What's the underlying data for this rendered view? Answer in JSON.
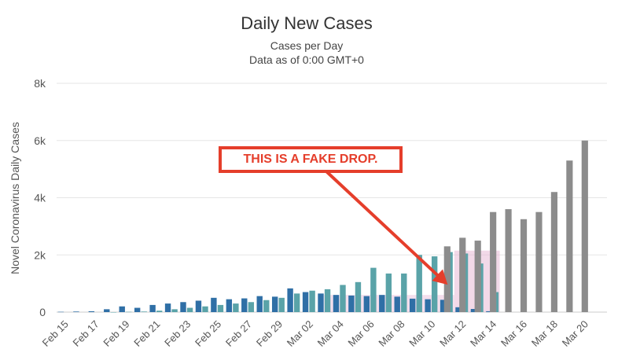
{
  "chart_data": {
    "type": "bar",
    "title": "Daily New Cases",
    "subtitle": "Cases per Day",
    "subtitle2": "Data as of 0:00 GMT+0",
    "ylabel": "Novel Coronavirus Daily Cases",
    "ylim": [
      0,
      8000
    ],
    "yticks": [
      "0",
      "2k",
      "4k",
      "6k",
      "8k"
    ],
    "ytick_values": [
      0,
      2000,
      4000,
      6000,
      8000
    ],
    "x_tick_labels": [
      "Feb 15",
      "Feb 17",
      "Feb 19",
      "Feb 21",
      "Feb 23",
      "Feb 25",
      "Feb 27",
      "Feb 29",
      "Mar 02",
      "Mar 04",
      "Mar 06",
      "Mar 08",
      "Mar 10",
      "Mar 12",
      "Mar 14",
      "Mar 16",
      "Mar 18",
      "Mar 20"
    ],
    "grid": true,
    "series_colors": {
      "blue": "#2f6fa6",
      "teal": "#5aa3a8",
      "gray": "#8c8c8c"
    },
    "series": [
      {
        "x": [
          "Feb 15",
          "Feb 16",
          "Feb 17",
          "Feb 18",
          "Feb 19",
          "Feb 20",
          "Feb 21",
          "Feb 22",
          "Feb 23",
          "Feb 24",
          "Feb 25",
          "Feb 26",
          "Feb 27",
          "Feb 28",
          "Feb 29",
          "Mar 01",
          "Mar 02",
          "Mar 03",
          "Mar 04",
          "Mar 05",
          "Mar 06",
          "Mar 07",
          "Mar 08",
          "Mar 09",
          "Mar 10",
          "Mar 11",
          "Mar 12",
          "Mar 13",
          "Mar 14"
        ],
        "values": [
          10,
          20,
          30,
          100,
          200,
          150,
          250,
          300,
          350,
          400,
          500,
          450,
          480,
          560,
          540,
          830,
          700,
          650,
          600,
          580,
          560,
          600,
          540,
          470,
          450,
          430,
          170,
          110,
          30
        ],
        "color": "#2f6fa6"
      },
      {
        "x": [
          "Feb 18",
          "Feb 19",
          "Feb 20",
          "Feb 21",
          "Feb 22",
          "Feb 23",
          "Feb 24",
          "Feb 25",
          "Feb 26",
          "Feb 27",
          "Feb 28",
          "Feb 29",
          "Mar 01",
          "Mar 02",
          "Mar 03",
          "Mar 04",
          "Mar 05",
          "Mar 06",
          "Mar 07",
          "Mar 08",
          "Mar 09",
          "Mar 10",
          "Mar 11",
          "Mar 12",
          "Mar 13",
          "Mar 14"
        ],
        "values": [
          0,
          10,
          20,
          50,
          100,
          150,
          200,
          250,
          300,
          350,
          420,
          500,
          650,
          750,
          800,
          950,
          1050,
          1550,
          1350,
          1350,
          2000,
          1950,
          2100,
          2050,
          1700,
          700
        ],
        "color": "#5aa3a8"
      },
      {
        "x": [
          "Mar 11",
          "Mar 12",
          "Mar 13",
          "Mar 14",
          "Mar 15",
          "Mar 16",
          "Mar 17",
          "Mar 18",
          "Mar 19",
          "Mar 20"
        ],
        "values": [
          2300,
          2600,
          2500,
          3500,
          3600,
          3250,
          3500,
          4200,
          5300,
          6000
        ],
        "color": "#8c8c8c"
      }
    ],
    "annotation": {
      "text": "THIS IS A FAKE DROP.",
      "color": "#e53e2b"
    }
  }
}
